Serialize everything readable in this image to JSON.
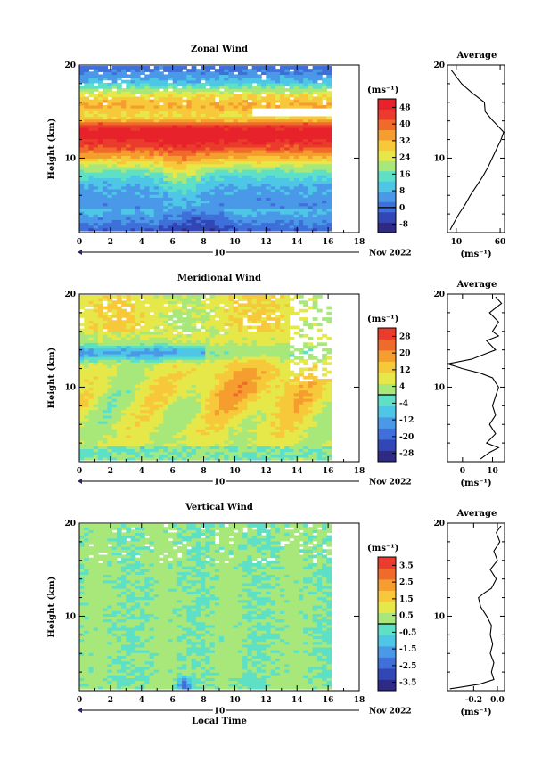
{
  "chart_data": [
    {
      "type": "heatmap",
      "title": "Zonal Wind",
      "ylabel": "Height (km)",
      "xlabel": "",
      "xlim": [
        0,
        18
      ],
      "ylim": [
        2,
        20
      ],
      "x_ticks": [
        "0",
        "2",
        "4",
        "6",
        "8",
        "10",
        "12",
        "14",
        "16",
        "18"
      ],
      "y_ticks": [
        "10",
        "20"
      ],
      "date_label": "10",
      "date_suffix": "Nov 2022",
      "colorbar": {
        "unit": "(ms⁻¹)",
        "ticks": [
          "48",
          "40",
          "32",
          "24",
          "16",
          "8",
          "0",
          "-8"
        ],
        "range": [
          -12,
          52
        ],
        "colors": [
          "#2e2a86",
          "#3346b5",
          "#3f6fd8",
          "#4a98e8",
          "#4ec6e6",
          "#5ee0c6",
          "#a8e87a",
          "#e6e84a",
          "#f7c93a",
          "#f59d2e",
          "#f06a2a",
          "#ea3b2c",
          "#e8222a"
        ]
      },
      "profile": {
        "title": "Average",
        "xlabel": "(ms⁻¹)",
        "x_ticks": [
          "10",
          "60"
        ],
        "xlim": [
          0,
          65
        ],
        "y_ticks": [
          "10",
          "20"
        ],
        "heights": [
          2.3,
          3,
          4,
          5,
          6,
          7,
          8,
          9,
          10,
          11,
          12,
          12.8,
          13.5,
          14.2,
          15,
          16,
          17,
          18,
          19,
          19.5
        ],
        "values": [
          3,
          7,
          13,
          20,
          26,
          33,
          40,
          46,
          51,
          56,
          61,
          64,
          57,
          50,
          43,
          42,
          28,
          16,
          8,
          4
        ]
      }
    },
    {
      "type": "heatmap",
      "title": "Meridional Wind",
      "ylabel": "Height (km)",
      "xlabel": "",
      "xlim": [
        0,
        18
      ],
      "ylim": [
        2,
        20
      ],
      "x_ticks": [
        "0",
        "2",
        "4",
        "6",
        "8",
        "10",
        "12",
        "14",
        "16",
        "18"
      ],
      "y_ticks": [
        "10",
        "20"
      ],
      "date_label": "10",
      "date_suffix": "Nov 2022",
      "colorbar": {
        "unit": "(ms⁻¹)",
        "ticks": [
          "28",
          "20",
          "12",
          "4",
          "-4",
          "-12",
          "-20",
          "-28"
        ],
        "range": [
          -32,
          32
        ],
        "colors": [
          "#2e2a86",
          "#3346b5",
          "#3f6fd8",
          "#4a98e8",
          "#4ec6e6",
          "#5ee0c6",
          "#a8e87a",
          "#e6e84a",
          "#f7c93a",
          "#f59d2e",
          "#f06a2a",
          "#ea3b2c"
        ]
      },
      "profile": {
        "title": "Average",
        "xlabel": "(ms⁻¹)",
        "x_ticks": [
          "0",
          "10"
        ],
        "xlim": [
          -5,
          14
        ],
        "y_ticks": [
          "10",
          "20"
        ],
        "heights": [
          2.3,
          3,
          3.5,
          4,
          5,
          6,
          7,
          8,
          9,
          10,
          11,
          11.5,
          12,
          12.5,
          13,
          13.5,
          14,
          15,
          15.5,
          16,
          17,
          18,
          19,
          19.7
        ],
        "values": [
          6,
          9,
          12,
          8,
          11,
          9,
          11,
          10,
          11,
          12,
          10,
          6,
          0,
          -5,
          3,
          7,
          11,
          8,
          12,
          10,
          12,
          9,
          13,
          11
        ]
      }
    },
    {
      "type": "heatmap",
      "title": "Vertical Wind",
      "ylabel": "Height (km)",
      "xlabel": "Local Time",
      "xlim": [
        0,
        18
      ],
      "ylim": [
        2,
        20
      ],
      "x_ticks": [
        "0",
        "2",
        "4",
        "6",
        "8",
        "10",
        "12",
        "14",
        "16",
        "18"
      ],
      "y_ticks": [
        "10",
        "20"
      ],
      "date_label": "10",
      "date_suffix": "Nov 2022",
      "colorbar": {
        "unit": "(ms⁻¹)",
        "ticks": [
          "3.5",
          "2.5",
          "1.5",
          "0.5",
          "-0.5",
          "-1.5",
          "-2.5",
          "-3.5"
        ],
        "range": [
          -4,
          4
        ],
        "colors": [
          "#2e2a86",
          "#3346b5",
          "#3f6fd8",
          "#4a98e8",
          "#4ec6e6",
          "#5ee0c6",
          "#a8e87a",
          "#e6e84a",
          "#f7c93a",
          "#f59d2e",
          "#f06a2a",
          "#ea3b2c"
        ]
      },
      "profile": {
        "title": "Average",
        "xlabel": "(ms⁻¹)",
        "x_ticks": [
          "-0.2",
          "0.0"
        ],
        "xlim": [
          -0.42,
          0.06
        ],
        "y_ticks": [
          "10",
          "20"
        ],
        "heights": [
          2.2,
          2.7,
          3.2,
          4,
          5,
          6,
          7,
          8,
          9,
          10,
          11,
          12,
          12.5,
          13,
          14,
          15,
          16,
          17,
          18,
          19,
          19.7
        ],
        "values": [
          -0.4,
          -0.15,
          -0.03,
          -0.05,
          -0.03,
          -0.06,
          -0.04,
          -0.06,
          -0.05,
          -0.09,
          -0.14,
          -0.16,
          -0.11,
          -0.05,
          -0.01,
          -0.06,
          0.0,
          -0.03,
          0.02,
          -0.01,
          0.03
        ]
      }
    }
  ]
}
